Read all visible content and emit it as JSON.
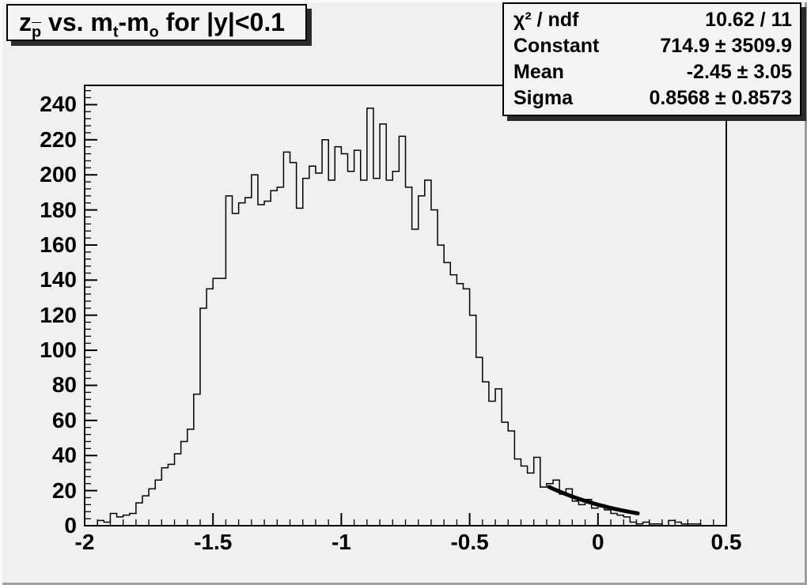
{
  "canvas": {
    "background": "#f0f0f0",
    "bevel_light": "#fbfbfb",
    "bevel_dark": "#9f9f9f",
    "pave_fill": "#f4f4f4",
    "pave_border": "#000000",
    "pave_shadow": "#2b2b2b"
  },
  "title_box": {
    "plain": "z_p vs. m_t-m_o for |y|<0.1",
    "segments": [
      {
        "t": "z"
      },
      {
        "t": "p",
        "sub": true,
        "bar": true
      },
      {
        "t": " vs. m"
      },
      {
        "t": "t",
        "sub": true
      },
      {
        "t": "-m"
      },
      {
        "t": "o",
        "sub": true
      },
      {
        "t": " for |y|<0.1"
      }
    ]
  },
  "stats_box": {
    "rows": [
      {
        "label": "χ² / ndf",
        "value": "10.62 / 11"
      },
      {
        "label": "Constant",
        "value": "714.9 ± 3509.9"
      },
      {
        "label": "Mean",
        "value": "-2.45 ± 3.05"
      },
      {
        "label": "Sigma",
        "value": "0.8568 ± 0.8573"
      }
    ]
  },
  "chart_data": {
    "type": "bar",
    "style": "step-histogram",
    "title": "z_p vs. m_t-m_o for |y|<0.1",
    "xlabel": "",
    "ylabel": "",
    "xlim": [
      -2.0,
      0.5
    ],
    "ylim": [
      0,
      251
    ],
    "grid": false,
    "x_start": -2.0,
    "bin_width": 0.025,
    "values": [
      0,
      0,
      3,
      2,
      7,
      5,
      6,
      7,
      13,
      17,
      21,
      26,
      33,
      35,
      41,
      48,
      55,
      75,
      124,
      135,
      141,
      141,
      188,
      178,
      184,
      187,
      200,
      183,
      185,
      191,
      193,
      213,
      207,
      181,
      198,
      205,
      201,
      220,
      197,
      216,
      212,
      202,
      214,
      197,
      238,
      198,
      229,
      197,
      202,
      222,
      193,
      169,
      188,
      197,
      180,
      160,
      150,
      143,
      138,
      135,
      120,
      96,
      82,
      71,
      78,
      59,
      54,
      38,
      34,
      30,
      39,
      22,
      24,
      26,
      18,
      21,
      14,
      12,
      15,
      10,
      12,
      9,
      7,
      6,
      5,
      2,
      1,
      2,
      1,
      1,
      0,
      3,
      2,
      1,
      1,
      1,
      0,
      0,
      0,
      0
    ],
    "x_major_ticks": [
      -2,
      -1.5,
      -1,
      -0.5,
      0,
      0.5
    ],
    "x_tick_labels": [
      "-2",
      "-1.5",
      "-1",
      "-0.5",
      "0",
      "0.5"
    ],
    "x_minor_step": 0.05,
    "y_major_step": 20,
    "y_minor_step": 4,
    "y_tick_labels": [
      "0",
      "20",
      "40",
      "60",
      "80",
      "100",
      "120",
      "140",
      "160",
      "180",
      "200",
      "220",
      "240"
    ],
    "line_color": "#000000",
    "axis_color": "#000000",
    "fit": {
      "type": "gaussian",
      "constant": 714.9,
      "mean": -2.45,
      "sigma": 0.8568,
      "x_range": [
        -0.19,
        0.155
      ],
      "color": "#000000",
      "width": 5
    }
  }
}
